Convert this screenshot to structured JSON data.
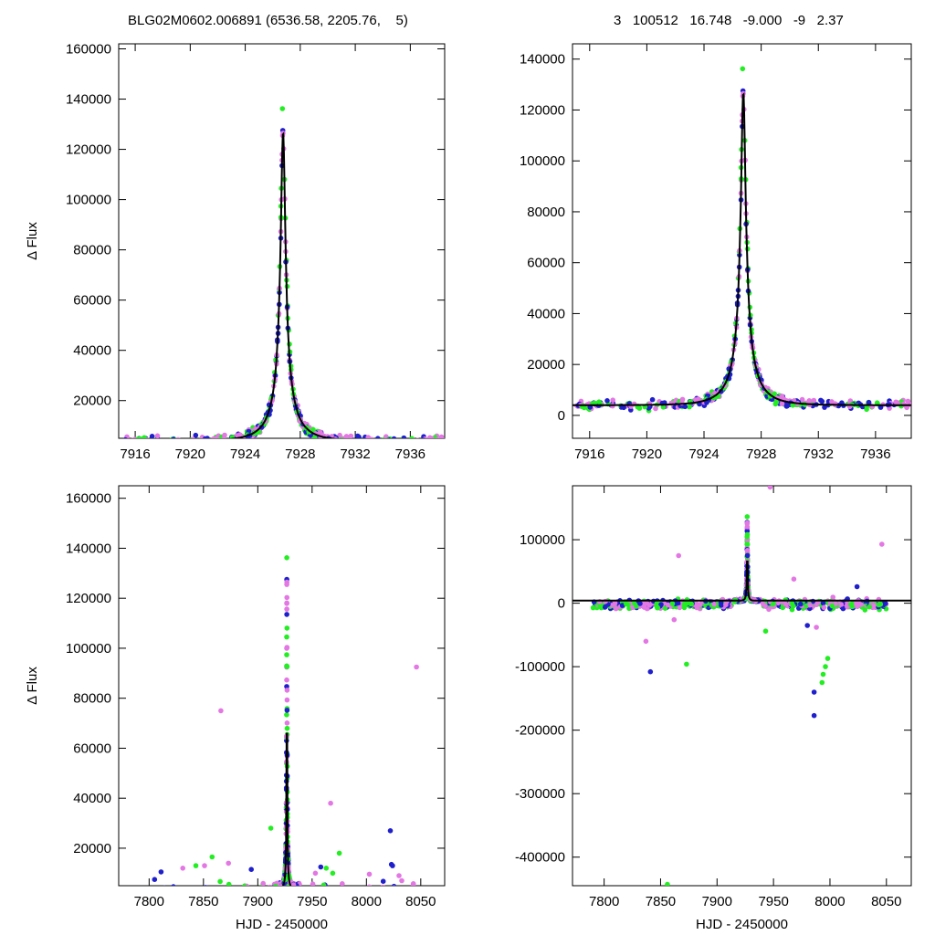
{
  "header": {
    "left": "BLG02M0602.006891 (6536.58, 2205.76,    5)",
    "right": "3   100512   16.748   -9.000   -9   2.37"
  },
  "colors": {
    "curve": "#000000",
    "series_magenta": "#e377e3",
    "series_blue": "#1f1fcc",
    "series_green": "#22ee22"
  },
  "chart_data": [
    {
      "type": "scatter",
      "panel": "top-left",
      "xlabel": "",
      "ylabel": "Δ Flux",
      "xlim": [
        7914.8,
        7938.5
      ],
      "ylim": [
        5000,
        162000
      ],
      "xticks": [
        7916,
        7920,
        7924,
        7928,
        7932,
        7936
      ],
      "yticks": [
        20000,
        40000,
        60000,
        80000,
        100000,
        120000,
        140000,
        160000
      ],
      "model": {
        "t0": 7926.75,
        "peak": 127000,
        "base": 4000,
        "u0": 0.08,
        "tE": 2.0
      }
    },
    {
      "type": "scatter",
      "panel": "top-right",
      "xlabel": "",
      "ylabel": "",
      "xlim": [
        7914.8,
        7938.5
      ],
      "ylim": [
        -9000,
        146000
      ],
      "xticks": [
        7916,
        7920,
        7924,
        7928,
        7932,
        7936
      ],
      "yticks": [
        0,
        20000,
        40000,
        60000,
        80000,
        100000,
        120000,
        140000
      ],
      "model": {
        "t0": 7926.75,
        "peak": 127000,
        "base": 4000,
        "u0": 0.08,
        "tE": 2.0
      }
    },
    {
      "type": "scatter",
      "panel": "bottom-left",
      "xlabel": "HJD - 2450000",
      "ylabel": "Δ Flux",
      "xlim": [
        7772,
        8072
      ],
      "ylim": [
        5000,
        165000
      ],
      "xticks": [
        7800,
        7850,
        7900,
        7950,
        8000,
        8050
      ],
      "yticks": [
        20000,
        40000,
        60000,
        80000,
        100000,
        120000,
        140000,
        160000
      ],
      "model": {
        "t0": 7926.75,
        "peak": 127000,
        "base": 4000,
        "u0": 0.08,
        "tE": 2.0
      },
      "outliers": [
        {
          "x": 7866,
          "y": 75000,
          "s": 0
        },
        {
          "x": 8046,
          "y": 92500,
          "s": 0
        },
        {
          "x": 7967,
          "y": 38000,
          "s": 0
        },
        {
          "x": 8022,
          "y": 27000,
          "s": 1
        },
        {
          "x": 8023,
          "y": 13500,
          "s": 1
        },
        {
          "x": 8024,
          "y": 13000,
          "s": 1
        },
        {
          "x": 7958,
          "y": 12500,
          "s": 1
        },
        {
          "x": 7975,
          "y": 18000,
          "s": 2
        },
        {
          "x": 7963,
          "y": 12000,
          "s": 2
        },
        {
          "x": 7969,
          "y": 10000,
          "s": 2
        },
        {
          "x": 7858,
          "y": 16500,
          "s": 2
        },
        {
          "x": 7843,
          "y": 13000,
          "s": 2
        },
        {
          "x": 7851,
          "y": 13000,
          "s": 0
        },
        {
          "x": 7831,
          "y": 12000,
          "s": 0
        },
        {
          "x": 7873,
          "y": 14000,
          "s": 0
        },
        {
          "x": 7811,
          "y": 10500,
          "s": 1
        },
        {
          "x": 7805,
          "y": 7500,
          "s": 1
        },
        {
          "x": 7894,
          "y": 11500,
          "s": 1
        },
        {
          "x": 7912,
          "y": 28000,
          "s": 2
        },
        {
          "x": 7953,
          "y": 10000,
          "s": 0
        },
        {
          "x": 8030,
          "y": 9000,
          "s": 0
        }
      ]
    },
    {
      "type": "scatter",
      "panel": "bottom-right",
      "xlabel": "HJD - 2450000",
      "ylabel": "",
      "xlim": [
        7772,
        8072
      ],
      "ylim": [
        -445000,
        185000
      ],
      "xticks": [
        7800,
        7850,
        7900,
        7950,
        8000,
        8050
      ],
      "yticks": [
        -400000,
        -300000,
        -200000,
        -100000,
        0,
        100000
      ],
      "model": {
        "t0": 7926.75,
        "peak": 127000,
        "base": 4000,
        "u0": 0.08,
        "tE": 2.0
      },
      "outliers": [
        {
          "x": 7947,
          "y": 183000,
          "s": 0
        },
        {
          "x": 7866,
          "y": 75000,
          "s": 0
        },
        {
          "x": 8046,
          "y": 93000,
          "s": 0
        },
        {
          "x": 7968,
          "y": 38000,
          "s": 0
        },
        {
          "x": 8024,
          "y": 26000,
          "s": 1
        },
        {
          "x": 7841,
          "y": -108000,
          "s": 1
        },
        {
          "x": 7986,
          "y": -140000,
          "s": 1
        },
        {
          "x": 7986,
          "y": -177000,
          "s": 1
        },
        {
          "x": 7873,
          "y": -96000,
          "s": 2
        },
        {
          "x": 7856,
          "y": -443000,
          "s": 2
        },
        {
          "x": 7998,
          "y": -87000,
          "s": 2
        },
        {
          "x": 7996,
          "y": -100000,
          "s": 2
        },
        {
          "x": 7994,
          "y": -112000,
          "s": 2
        },
        {
          "x": 7993,
          "y": -125000,
          "s": 2
        },
        {
          "x": 7988,
          "y": -38000,
          "s": 0
        },
        {
          "x": 7837,
          "y": -60000,
          "s": 0
        },
        {
          "x": 7862,
          "y": -26000,
          "s": 0
        },
        {
          "x": 7943,
          "y": -44000,
          "s": 2
        },
        {
          "x": 7980,
          "y": -35000,
          "s": 1
        }
      ]
    }
  ]
}
